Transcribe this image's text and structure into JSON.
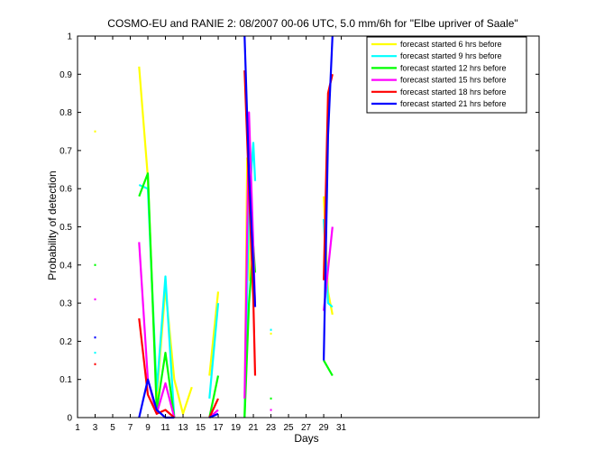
{
  "chart_data": {
    "type": "line",
    "title": "COSMO-EU and RANIE 2: 08/2007 00-06 UTC, 5.0 mm/6h for \"Elbe upriver of Saale\"",
    "xlabel": "Days",
    "ylabel": "Probability of detection",
    "xlim": [
      1,
      53.5
    ],
    "ylim": [
      0,
      1
    ],
    "xticks": [
      "1",
      "3",
      "5",
      "7",
      "9",
      "11",
      "13",
      "15",
      "17",
      "19",
      "21",
      "23",
      "25",
      "27",
      "29",
      "31"
    ],
    "yticks": [
      "0",
      "0.1",
      "0.2",
      "0.3",
      "0.4",
      "0.5",
      "0.6",
      "0.7",
      "0.8",
      "0.9",
      "1"
    ],
    "grid": false,
    "legend_position": "top-right",
    "series": [
      {
        "name": "forecast started 6 hrs before",
        "color": "#ffff00",
        "points": [
          [
            3,
            0.75
          ],
          null,
          [
            8,
            0.92
          ],
          [
            9,
            0.63
          ],
          [
            10,
            0.05
          ],
          [
            11,
            0.34
          ],
          [
            12,
            0.1
          ],
          [
            13,
            0.01
          ],
          [
            14,
            0.08
          ],
          null,
          [
            16,
            0.11
          ],
          [
            17,
            0.33
          ],
          null,
          [
            20,
            0.0
          ],
          [
            20.3,
            0.68
          ],
          [
            20.6,
            0.36
          ],
          [
            21,
            0.4
          ],
          [
            21.2,
            0.3
          ],
          null,
          [
            23,
            0.22
          ],
          null,
          [
            29,
            0.58
          ],
          [
            29.5,
            0.33
          ],
          [
            30,
            0.27
          ]
        ]
      },
      {
        "name": "forecast started 9 hrs before",
        "color": "#00ffff",
        "points": [
          [
            3,
            0.17
          ],
          null,
          [
            8,
            0.61
          ],
          [
            9,
            0.6
          ],
          [
            10,
            0.07
          ],
          [
            11,
            0.37
          ],
          [
            12,
            0.0
          ],
          null,
          [
            16,
            0.05
          ],
          [
            17,
            0.3
          ],
          null,
          [
            20,
            0.0
          ],
          [
            20.5,
            0.56
          ],
          [
            21,
            0.72
          ],
          [
            21.2,
            0.62
          ],
          null,
          [
            23,
            0.23
          ],
          null,
          [
            29,
            0.52
          ],
          [
            29.5,
            0.3
          ],
          [
            30,
            0.29
          ]
        ]
      },
      {
        "name": "forecast started 12 hrs before",
        "color": "#00ff00",
        "points": [
          [
            3,
            0.4
          ],
          null,
          [
            8,
            0.58
          ],
          [
            8.5,
            0.61
          ],
          [
            9,
            0.64
          ],
          [
            10,
            0.02
          ],
          [
            11,
            0.17
          ],
          [
            12,
            0.0
          ],
          null,
          [
            16,
            0.0
          ],
          [
            17,
            0.11
          ],
          null,
          [
            20,
            0.0
          ],
          [
            20.5,
            0.3
          ],
          [
            21,
            0.45
          ],
          [
            21.2,
            0.38
          ],
          null,
          [
            23,
            0.05
          ],
          null,
          [
            29,
            0.15
          ],
          [
            30,
            0.11
          ]
        ]
      },
      {
        "name": "forecast started 15 hrs before",
        "color": "#ff00ff",
        "points": [
          [
            3,
            0.31
          ],
          null,
          [
            8,
            0.46
          ],
          [
            9,
            0.1
          ],
          [
            10,
            0.01
          ],
          [
            11,
            0.09
          ],
          [
            12,
            0.0
          ],
          null,
          [
            16,
            0.0
          ],
          [
            17,
            0.02
          ],
          null,
          [
            20,
            0.05
          ],
          [
            20.5,
            0.8
          ],
          [
            21,
            0.45
          ],
          [
            21.2,
            0.29
          ],
          null,
          [
            23,
            0.02
          ],
          null,
          [
            29,
            0.28
          ],
          [
            30,
            0.5
          ]
        ]
      },
      {
        "name": "forecast started 18 hrs before",
        "color": "#ff0000",
        "points": [
          [
            3,
            0.14
          ],
          null,
          [
            8,
            0.26
          ],
          [
            9,
            0.06
          ],
          [
            10,
            0.01
          ],
          [
            11,
            0.02
          ],
          [
            12,
            0.0
          ],
          null,
          [
            16,
            0.0
          ],
          [
            17,
            0.05
          ],
          null,
          [
            20,
            0.91
          ],
          [
            20.5,
            0.6
          ],
          [
            21,
            0.31
          ],
          [
            21.2,
            0.11
          ],
          null,
          [
            29,
            0.36
          ],
          [
            29.5,
            0.85
          ],
          [
            30,
            0.9
          ]
        ]
      },
      {
        "name": "forecast started 21 hrs before",
        "color": "#0000ff",
        "points": [
          [
            3,
            0.21
          ],
          null,
          [
            8,
            0.0
          ],
          [
            9,
            0.1
          ],
          [
            10,
            0.02
          ],
          [
            11,
            0.0
          ],
          [
            12,
            0.0
          ],
          null,
          [
            16,
            0.0
          ],
          [
            17,
            0.01
          ],
          null,
          [
            20,
            1.0
          ],
          [
            20.5,
            0.64
          ],
          [
            21,
            0.4
          ],
          [
            21.2,
            0.29
          ],
          null,
          [
            29,
            0.15
          ],
          [
            29.5,
            0.74
          ],
          [
            30,
            1.0
          ]
        ]
      }
    ]
  }
}
